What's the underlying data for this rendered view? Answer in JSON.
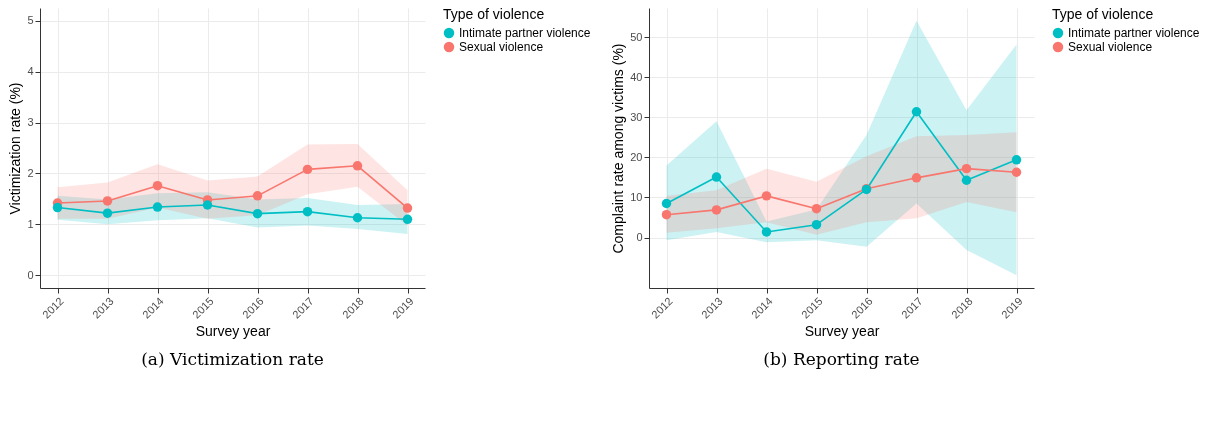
{
  "chart_data": [
    {
      "type": "line",
      "title": "(a) Victimization rate",
      "xlabel": "Survey year",
      "ylabel": "Victimization rate (%)",
      "legend_title": "Type of violence",
      "categories": [
        "2012",
        "2013",
        "2014",
        "2015",
        "2016",
        "2017",
        "2018",
        "2019"
      ],
      "series": [
        {
          "name": "Intimate partner violence",
          "color": "#00bfc4",
          "values": [
            1.33,
            1.22,
            1.34,
            1.38,
            1.21,
            1.25,
            1.13,
            1.1
          ],
          "lower": [
            1.09,
            1.0,
            1.08,
            1.12,
            0.94,
            0.98,
            0.91,
            0.81
          ],
          "upper": [
            1.56,
            1.49,
            1.61,
            1.63,
            1.49,
            1.52,
            1.38,
            1.4
          ]
        },
        {
          "name": "Sexual violence",
          "color": "#f8766d",
          "values": [
            1.42,
            1.46,
            1.76,
            1.48,
            1.56,
            2.08,
            2.15,
            1.32
          ],
          "lower": [
            1.11,
            1.11,
            1.33,
            1.11,
            1.18,
            1.59,
            1.74,
            0.98
          ],
          "upper": [
            1.73,
            1.82,
            2.18,
            1.86,
            1.94,
            2.57,
            2.58,
            1.67
          ]
        }
      ],
      "ylim": [
        -0.25,
        5.25
      ],
      "yticks": [
        0,
        1,
        2,
        3,
        4,
        5
      ],
      "grid": true,
      "legend": "right",
      "marker": "circle",
      "line_style": "solid"
    },
    {
      "type": "line",
      "title": "(b) Reporting rate",
      "xlabel": "Survey year",
      "ylabel": "Complaint rate among victims (%)",
      "legend_title": "Type of violence",
      "categories": [
        "2012",
        "2013",
        "2014",
        "2015",
        "2016",
        "2017",
        "2018",
        "2019"
      ],
      "series": [
        {
          "name": "Intimate partner violence",
          "color": "#00bfc4",
          "values": [
            8.5,
            15.1,
            1.4,
            3.2,
            12.0,
            31.4,
            14.3,
            19.4
          ],
          "lower": [
            -0.7,
            1.4,
            -1.2,
            -0.7,
            -2.3,
            8.5,
            -3.1,
            -9.4
          ],
          "upper": [
            18.0,
            29.0,
            4.0,
            7.0,
            25.6,
            54.1,
            31.8,
            48.2
          ]
        },
        {
          "name": "Sexual violence",
          "color": "#f8766d",
          "values": [
            5.7,
            6.9,
            10.4,
            7.2,
            12.2,
            14.9,
            17.2,
            16.3
          ],
          "lower": [
            1.2,
            2.3,
            3.8,
            0.7,
            3.8,
            4.8,
            8.9,
            6.3
          ],
          "upper": [
            10.4,
            11.8,
            17.2,
            13.9,
            20.3,
            25.3,
            25.6,
            26.3
          ]
        }
      ],
      "ylim": [
        -12.6,
        57.3
      ],
      "yticks": [
        0,
        10,
        20,
        30,
        40,
        50
      ],
      "grid": true,
      "legend": "right",
      "marker": "circle",
      "line_style": "solid"
    }
  ]
}
